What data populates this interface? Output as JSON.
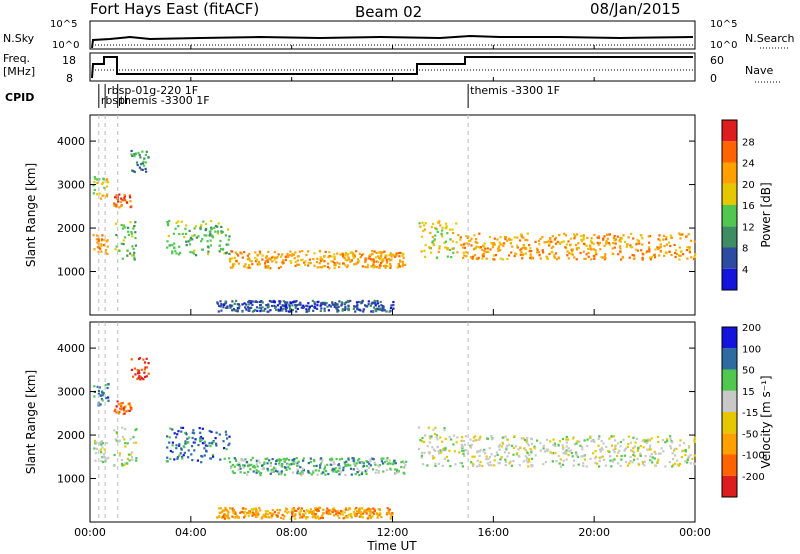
{
  "header": {
    "site": "Fort Hays East (fitACF)",
    "beam": "Beam 02",
    "date": "08/Jan/2015"
  },
  "meta_panels": {
    "nsky_label": "N.Sky",
    "nsearch_label": "N.Search",
    "freq_label_line1": "Freq.",
    "freq_label_line2": "[MHz]",
    "nave_label": "Nave",
    "cpid_label": "CPID",
    "nsky_ticks": [
      "10^5",
      "10^0"
    ],
    "nsearch_ticks": [
      "10^5",
      "10^0"
    ],
    "freq_ticks": [
      "18",
      "8"
    ],
    "nave_ticks": [
      "60",
      "0"
    ],
    "cpid_events": [
      {
        "time_h": 0.35,
        "text": "rbspr"
      },
      {
        "time_h": 0.6,
        "text": "rbsp-01g-220 1F"
      },
      {
        "time_h": 1.1,
        "text": "themis -3300 1F"
      },
      {
        "time_h": 15.0,
        "text": "themis -3300 1F"
      }
    ]
  },
  "chart_data": [
    {
      "type": "heatmap",
      "name": "power",
      "ylabel": "Slant Range [km]",
      "yticks": [
        1000,
        2000,
        3000,
        4000
      ],
      "ylim": [
        0,
        4600
      ],
      "xlim": [
        0,
        24
      ],
      "colorbar_label": "Power [dB]",
      "colorbar_ticks": [
        "4",
        "8",
        "12",
        "16",
        "20",
        "24",
        "28"
      ],
      "colorbar_colors": [
        "#1414dc",
        "#2d4ba0",
        "#3c8c64",
        "#50c850",
        "#e6c800",
        "#ffa000",
        "#ff6400",
        "#dc1e1e"
      ],
      "bands": [
        {
          "t": [
            0.1,
            0.7
          ],
          "r": [
            1400,
            1900
          ],
          "level": 5
        },
        {
          "t": [
            0.1,
            0.7
          ],
          "r": [
            2700,
            3200
          ],
          "level": 4
        },
        {
          "t": [
            0.9,
            1.6
          ],
          "r": [
            2500,
            2800
          ],
          "level": 6
        },
        {
          "t": [
            0.9,
            1.8
          ],
          "r": [
            1300,
            2200
          ],
          "level": 3
        },
        {
          "t": [
            1.6,
            2.3
          ],
          "r": [
            3300,
            3800
          ],
          "level": 2
        },
        {
          "t": [
            3.0,
            5.5
          ],
          "r": [
            1400,
            2200
          ],
          "level": 3
        },
        {
          "t": [
            5.5,
            12.5
          ],
          "r": [
            1100,
            1500
          ],
          "level": 5
        },
        {
          "t": [
            13.0,
            14.5
          ],
          "r": [
            1300,
            2200
          ],
          "level": 4
        },
        {
          "t": [
            14.5,
            24.0
          ],
          "r": [
            1300,
            1900
          ],
          "level": 5
        },
        {
          "t": [
            5.0,
            12.0
          ],
          "r": [
            100,
            350
          ],
          "level": 1
        }
      ]
    },
    {
      "type": "heatmap",
      "name": "velocity",
      "xlabel": "Time UT",
      "ylabel": "Slant Range [km]",
      "yticks": [
        1000,
        2000,
        3000,
        4000
      ],
      "ylim": [
        0,
        4600
      ],
      "xlim": [
        0,
        24
      ],
      "xticks": [
        "00:00",
        "04:00",
        "08:00",
        "12:00",
        "16:00",
        "20:00",
        "00:00"
      ],
      "colorbar_label": "Velocity [m s⁻¹]",
      "colorbar_ticks": [
        "-200",
        "-100",
        "-50",
        "-15",
        "15",
        "50",
        "100",
        "200"
      ],
      "colorbar_colors": [
        "#dc1e1e",
        "#ff6400",
        "#ffa000",
        "#e6c800",
        "#c8c8c8",
        "#50c850",
        "#2d6ba0",
        "#1414dc"
      ],
      "bands": [
        {
          "t": [
            0.1,
            0.7
          ],
          "r": [
            1400,
            1900
          ],
          "level": 4
        },
        {
          "t": [
            0.1,
            0.7
          ],
          "r": [
            2700,
            3200
          ],
          "level": 6
        },
        {
          "t": [
            0.9,
            1.6
          ],
          "r": [
            2500,
            2800
          ],
          "level": 1
        },
        {
          "t": [
            0.9,
            1.8
          ],
          "r": [
            1300,
            2200
          ],
          "level": 4
        },
        {
          "t": [
            1.6,
            2.3
          ],
          "r": [
            3300,
            3800
          ],
          "level": 0
        },
        {
          "t": [
            3.0,
            5.5
          ],
          "r": [
            1400,
            2200
          ],
          "level": 6
        },
        {
          "t": [
            5.5,
            12.5
          ],
          "r": [
            1100,
            1500
          ],
          "level": 5
        },
        {
          "t": [
            13.0,
            14.5
          ],
          "r": [
            1300,
            2200
          ],
          "level": 4
        },
        {
          "t": [
            14.5,
            24.0
          ],
          "r": [
            1300,
            2000
          ],
          "level": 4
        },
        {
          "t": [
            5.0,
            12.0
          ],
          "r": [
            100,
            350
          ],
          "level": 2
        }
      ]
    }
  ]
}
